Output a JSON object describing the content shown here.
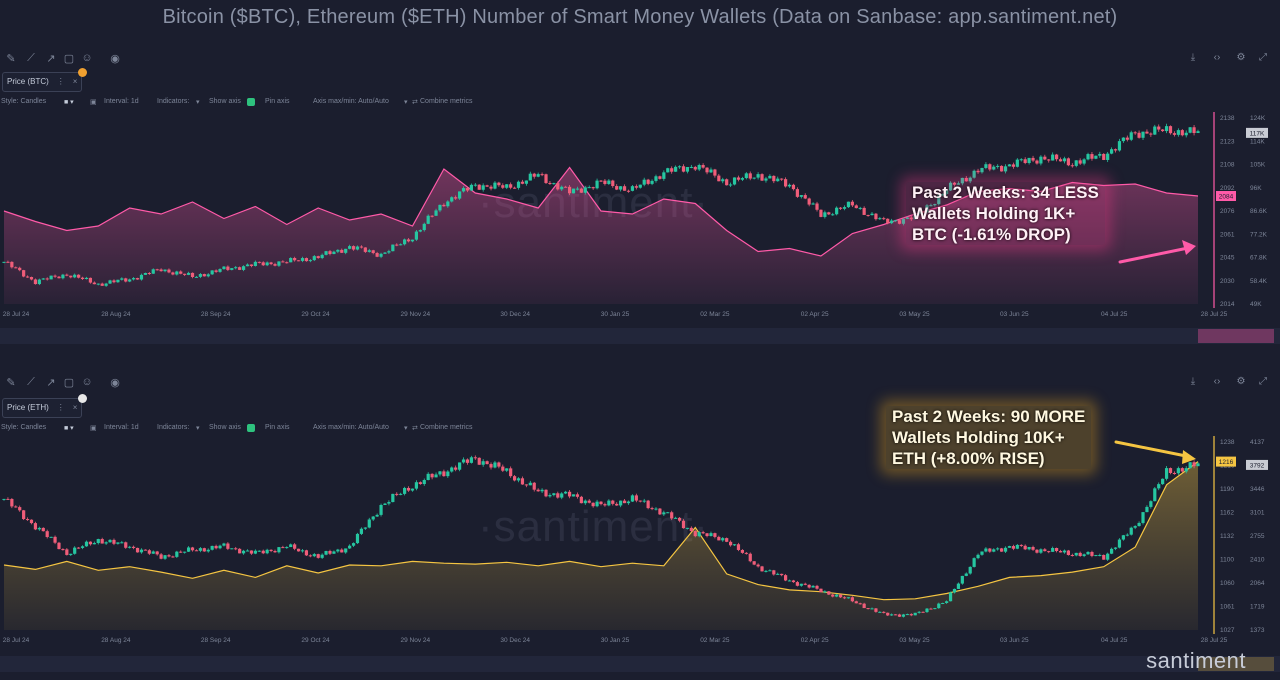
{
  "title": "Bitcoin ($BTC), Ethereum ($ETH) Number of Smart Money Wallets (Data on Sanbase: app.santiment.net)",
  "brand": "santiment",
  "watermark": "·santiment·",
  "colors": {
    "background": "#1b1e2e",
    "candle_up": "#26c6a1",
    "candle_down": "#ef5d79",
    "btc_wallets": "#ff5aa8",
    "eth_wallets": "#f5c542"
  },
  "toolbar": {
    "icons": [
      "pencil-icon",
      "line-tool-icon",
      "arrow-tool-icon",
      "note-icon",
      "emoji-icon",
      "eye-icon"
    ],
    "right_icons": [
      "download-icon",
      "code-icon",
      "gear-icon",
      "fullscreen-icon"
    ],
    "style_label": "Style: Candles",
    "interval_label": "Interval: 1d",
    "indicators_label": "Indicators:",
    "show_axis_label": "Show axis",
    "pin_axis_label": "Pin axis",
    "axis_label": "Axis max/min: Auto/Auto",
    "combine_label": "Combine metrics"
  },
  "chart_data": [
    {
      "type": "line",
      "title": "",
      "metric_tag": "Price (BTC)",
      "x_ticks": [
        "28 Jul 24",
        "28 Aug 24",
        "28 Sep 24",
        "29 Oct 24",
        "29 Nov 24",
        "30 Dec 24",
        "30 Jan 25",
        "02 Mar 25",
        "02 Apr 25",
        "03 May 25",
        "03 Jun 25",
        "04 Jul 25",
        "28 Jul 25"
      ],
      "left_axis": [
        "2138",
        "2123",
        "2108",
        "2092",
        "2076",
        "2061",
        "2045",
        "2030",
        "2014"
      ],
      "left_ylim": [
        2014,
        2138
      ],
      "right_axis": [
        "124K",
        "114K",
        "105K",
        "96K",
        "86.6K",
        "77.2K",
        "67.8K",
        "58.4K",
        "49K"
      ],
      "right_ylim": [
        49000,
        124000
      ],
      "series": [
        {
          "name": "Price (BTC)",
          "style": "candles",
          "values": [
            66000,
            58000,
            61000,
            57000,
            59000,
            63000,
            60000,
            63000,
            65000,
            66000,
            68000,
            72000,
            69000,
            76000,
            90000,
            97000,
            96000,
            101000,
            94000,
            98000,
            95000,
            102000,
            105000,
            98000,
            101000,
            97000,
            85000,
            89000,
            82000,
            84000,
            95000,
            103000,
            105000,
            108000,
            106000,
            109000,
            118000,
            119000,
            118000
          ]
        },
        {
          "name": "Wallets Holding 1K+ BTC",
          "style": "area",
          "values": [
            2076,
            2069,
            2063,
            2066,
            2078,
            2074,
            2082,
            2071,
            2079,
            2067,
            2078,
            2070,
            2074,
            2066,
            2104,
            2088,
            2084,
            2078,
            2105,
            2076,
            2074,
            2084,
            2081,
            2063,
            2049,
            2051,
            2046,
            2061,
            2067,
            2074,
            2080,
            2089,
            2091,
            2089,
            2095,
            2093,
            2094,
            2088,
            2086
          ]
        }
      ],
      "current_left": "2084",
      "current_right": "117K",
      "annotation": "Past 2 Weeks: 34 LESS\nWallets Holding 1K+\nBTC (-1.61% DROP)"
    },
    {
      "type": "line",
      "title": "",
      "metric_tag": "Price (ETH)",
      "x_ticks": [
        "28 Jul 24",
        "28 Aug 24",
        "28 Sep 24",
        "29 Oct 24",
        "29 Nov 24",
        "30 Dec 24",
        "30 Jan 25",
        "02 Mar 25",
        "02 Apr 25",
        "03 May 25",
        "03 Jun 25",
        "04 Jul 25",
        "28 Jul 25"
      ],
      "left_axis": [
        "1238",
        "1216",
        "1190",
        "1162",
        "1132",
        "1100",
        "1060",
        "1061",
        "1027"
      ],
      "left_ylim": [
        1027,
        1238
      ],
      "right_axis": [
        "4137",
        "3792",
        "3446",
        "3101",
        "2755",
        "2410",
        "2064",
        "1719",
        "1373"
      ],
      "right_ylim": [
        1373,
        4137
      ],
      "series": [
        {
          "name": "Price (ETH)",
          "style": "candles",
          "values": [
            3300,
            2900,
            2500,
            2700,
            2600,
            2450,
            2550,
            2600,
            2500,
            2600,
            2450,
            2600,
            3200,
            3500,
            3700,
            3900,
            3700,
            3400,
            3350,
            3200,
            3300,
            3100,
            2800,
            2700,
            2300,
            2100,
            1950,
            1800,
            1600,
            1600,
            1800,
            2500,
            2600,
            2550,
            2500,
            2450,
            2900,
            3700,
            3800
          ]
        },
        {
          "name": "Wallets Holding 10K+ ETH",
          "style": "area",
          "values": [
            1100,
            1095,
            1104,
            1094,
            1098,
            1092,
            1085,
            1094,
            1086,
            1099,
            1091,
            1100,
            1099,
            1104,
            1102,
            1101,
            1103,
            1099,
            1104,
            1098,
            1102,
            1099,
            1142,
            1090,
            1078,
            1072,
            1070,
            1066,
            1061,
            1062,
            1068,
            1076,
            1086,
            1088,
            1092,
            1098,
            1120,
            1190,
            1216
          ]
        }
      ],
      "current_left": "1216",
      "current_right": "3792",
      "annotation": "Past 2 Weeks: 90 MORE\nWallets Holding 10K+\nETH (+8.00% RISE)"
    }
  ]
}
